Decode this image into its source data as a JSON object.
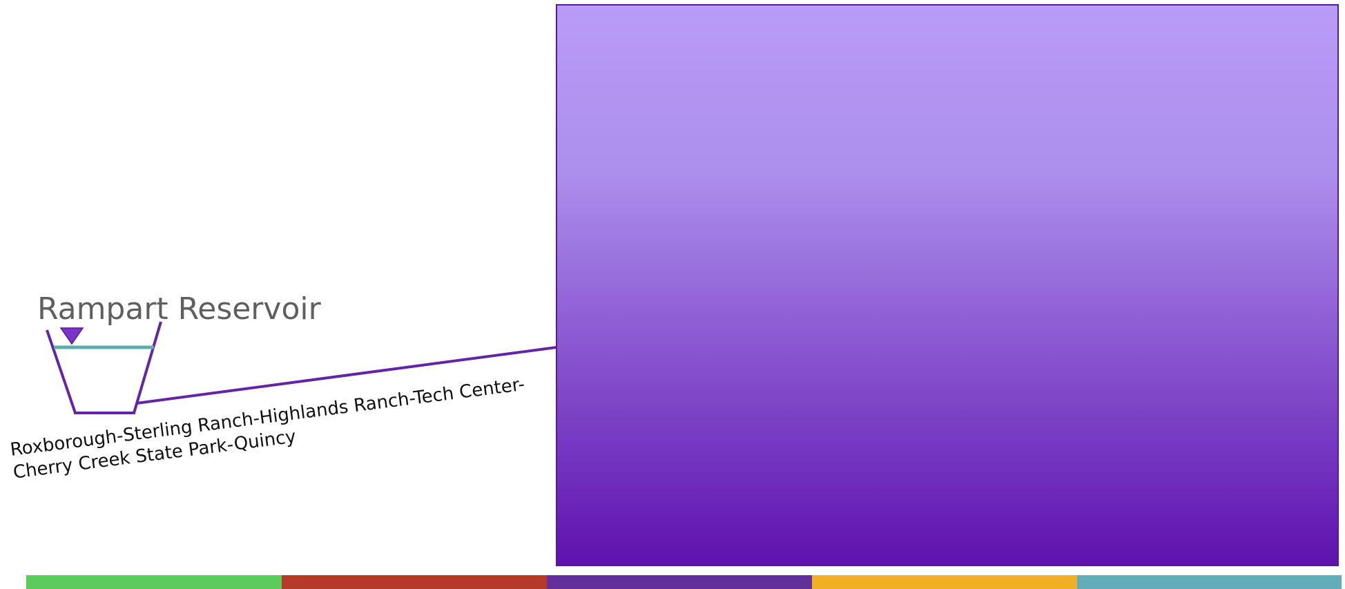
{
  "reservoir": {
    "name": "Rampart Reservoir",
    "icon": "reservoir-basin-icon"
  },
  "route": {
    "line1": "Roxborough-Sterling Ranch-Highlands Ranch-Tech Center-",
    "line2": "Cherry Creek State Park-Quincy"
  },
  "colors": {
    "panel_top": "#b99cf6",
    "panel_bottom": "#5e12ae",
    "panel_border": "#5a189a",
    "route_line": "#6325a6",
    "water_line": "#5eadad",
    "stripes": [
      "#5bcb5b",
      "#b53a2a",
      "#63309a",
      "#f0b024",
      "#63adba"
    ]
  }
}
